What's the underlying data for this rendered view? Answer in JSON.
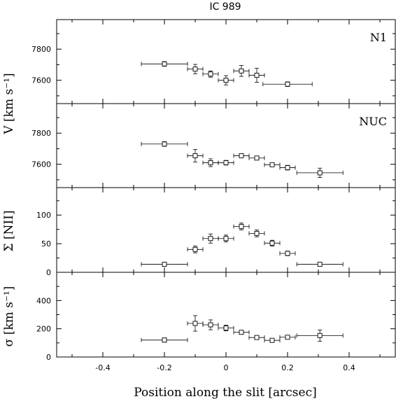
{
  "chart_data": {
    "type": "scatter",
    "title": "IC 989",
    "xlabel": "Position along the slit [arcsec]",
    "xlim": [
      -0.55,
      0.55
    ],
    "xticks": [
      -0.4,
      -0.2,
      0,
      0.2,
      0.4
    ],
    "xtick_labels": [
      "-0.4",
      "-0.2",
      "0",
      "0.2",
      "0.4"
    ],
    "shared_ylabel": "V [km s⁻¹]",
    "grid": false,
    "panels": [
      {
        "label": "N1",
        "ylim": [
          7450,
          7990
        ],
        "yticks": [
          7600,
          7800
        ],
        "ytick_labels": [
          "7600",
          "7800"
        ],
        "points": [
          {
            "x": -0.2,
            "xerr": 0.075,
            "y": 7705,
            "yerr": 15
          },
          {
            "x": -0.1,
            "xerr": 0.025,
            "y": 7672,
            "yerr": 30
          },
          {
            "x": -0.05,
            "xerr": 0.025,
            "y": 7640,
            "yerr": 20
          },
          {
            "x": 0.0,
            "xerr": 0.025,
            "y": 7600,
            "yerr": 30
          },
          {
            "x": 0.05,
            "xerr": 0.025,
            "y": 7660,
            "yerr": 35
          },
          {
            "x": 0.1,
            "xerr": 0.025,
            "y": 7632,
            "yerr": 45
          },
          {
            "x": 0.2,
            "xerr": 0.08,
            "y": 7575,
            "yerr": 15
          }
        ]
      },
      {
        "label": "NUC",
        "ylim": [
          7450,
          7990
        ],
        "yticks": [
          7600,
          7800
        ],
        "ytick_labels": [
          "7600",
          "7800"
        ],
        "points": [
          {
            "x": -0.2,
            "xerr": 0.075,
            "y": 7730,
            "yerr": 15
          },
          {
            "x": -0.1,
            "xerr": 0.025,
            "y": 7655,
            "yerr": 40
          },
          {
            "x": -0.05,
            "xerr": 0.025,
            "y": 7610,
            "yerr": 25
          },
          {
            "x": 0.0,
            "xerr": 0.025,
            "y": 7610,
            "yerr": 15
          },
          {
            "x": 0.05,
            "xerr": 0.025,
            "y": 7655,
            "yerr": 10
          },
          {
            "x": 0.1,
            "xerr": 0.025,
            "y": 7640,
            "yerr": 10
          },
          {
            "x": 0.15,
            "xerr": 0.025,
            "y": 7597,
            "yerr": 10
          },
          {
            "x": 0.2,
            "xerr": 0.025,
            "y": 7578,
            "yerr": 15
          },
          {
            "x": 0.305,
            "xerr": 0.075,
            "y": 7545,
            "yerr": 30
          }
        ]
      },
      {
        "label": "",
        "ylabel": "Σ [NII]",
        "ylim": [
          0,
          148
        ],
        "yticks": [
          0,
          50,
          100
        ],
        "ytick_labels": [
          "0",
          "50",
          "100"
        ],
        "points": [
          {
            "x": -0.2,
            "xerr": 0.075,
            "y": 14,
            "yerr": 3
          },
          {
            "x": -0.1,
            "xerr": 0.025,
            "y": 40,
            "yerr": 6
          },
          {
            "x": -0.05,
            "xerr": 0.025,
            "y": 59,
            "yerr": 8
          },
          {
            "x": 0.0,
            "xerr": 0.025,
            "y": 59,
            "yerr": 6
          },
          {
            "x": 0.05,
            "xerr": 0.025,
            "y": 80,
            "yerr": 6
          },
          {
            "x": 0.1,
            "xerr": 0.025,
            "y": 68,
            "yerr": 6
          },
          {
            "x": 0.15,
            "xerr": 0.025,
            "y": 51,
            "yerr": 5
          },
          {
            "x": 0.2,
            "xerr": 0.025,
            "y": 33,
            "yerr": 4
          },
          {
            "x": 0.305,
            "xerr": 0.075,
            "y": 14,
            "yerr": 3
          }
        ]
      },
      {
        "label": "",
        "ylabel": "σ [km s⁻¹]",
        "ylim": [
          0,
          600
        ],
        "yticks": [
          0,
          200,
          400
        ],
        "ytick_labels": [
          "0",
          "200",
          "400"
        ],
        "points": [
          {
            "x": -0.2,
            "xerr": 0.075,
            "y": 120,
            "yerr": 15
          },
          {
            "x": -0.1,
            "xerr": 0.025,
            "y": 238,
            "yerr": 55
          },
          {
            "x": -0.05,
            "xerr": 0.025,
            "y": 228,
            "yerr": 35
          },
          {
            "x": 0.0,
            "xerr": 0.025,
            "y": 205,
            "yerr": 20
          },
          {
            "x": 0.05,
            "xerr": 0.025,
            "y": 175,
            "yerr": 10
          },
          {
            "x": 0.1,
            "xerr": 0.025,
            "y": 138,
            "yerr": 10
          },
          {
            "x": 0.15,
            "xerr": 0.025,
            "y": 118,
            "yerr": 10
          },
          {
            "x": 0.2,
            "xerr": 0.025,
            "y": 140,
            "yerr": 12
          },
          {
            "x": 0.305,
            "xerr": 0.075,
            "y": 152,
            "yerr": 40
          }
        ]
      }
    ]
  }
}
